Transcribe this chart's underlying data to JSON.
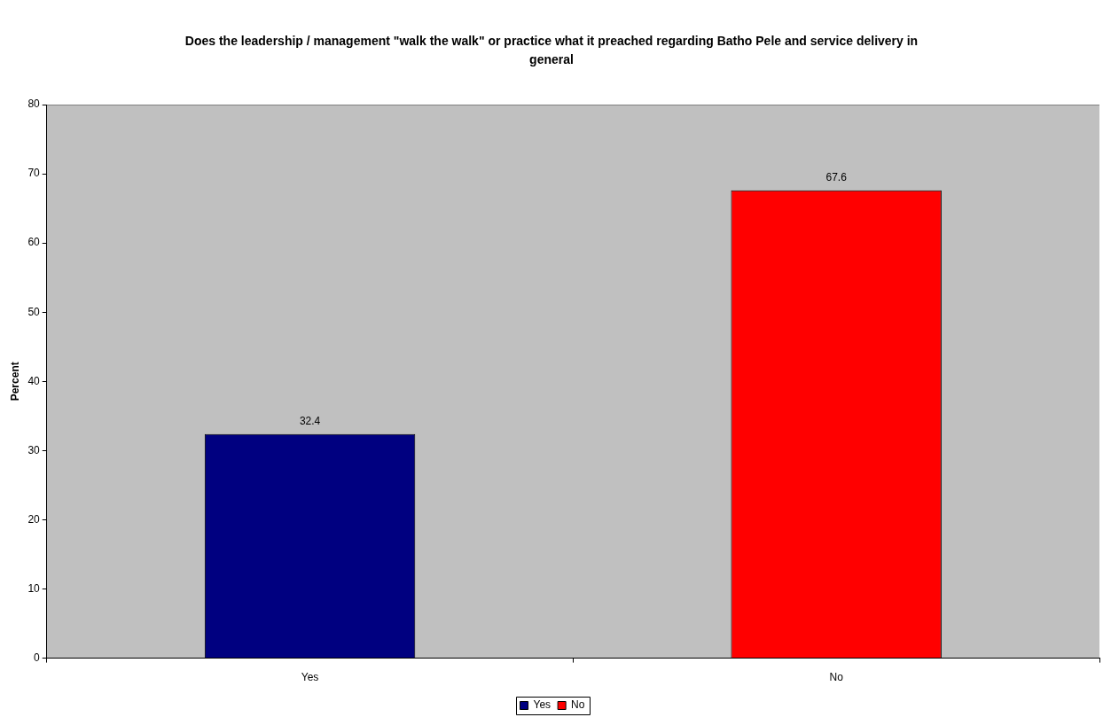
{
  "chart_data": {
    "type": "bar",
    "title": "Does the leadership / management \"walk the walk\" or practice what it preached regarding Batho Pele and service delivery in general",
    "ylabel": "Percent",
    "categories": [
      "Yes",
      "No"
    ],
    "series": [
      {
        "name": "Yes",
        "color": "#000080",
        "values": [
          32.4,
          null
        ]
      },
      {
        "name": "No",
        "color": "#ff0000",
        "values": [
          null,
          67.6
        ]
      }
    ],
    "ylim": [
      0,
      80
    ],
    "yticks": [
      0,
      10,
      20,
      30,
      40,
      50,
      60,
      70,
      80
    ],
    "grid": false,
    "legend": "bottom",
    "data_labels": true
  }
}
